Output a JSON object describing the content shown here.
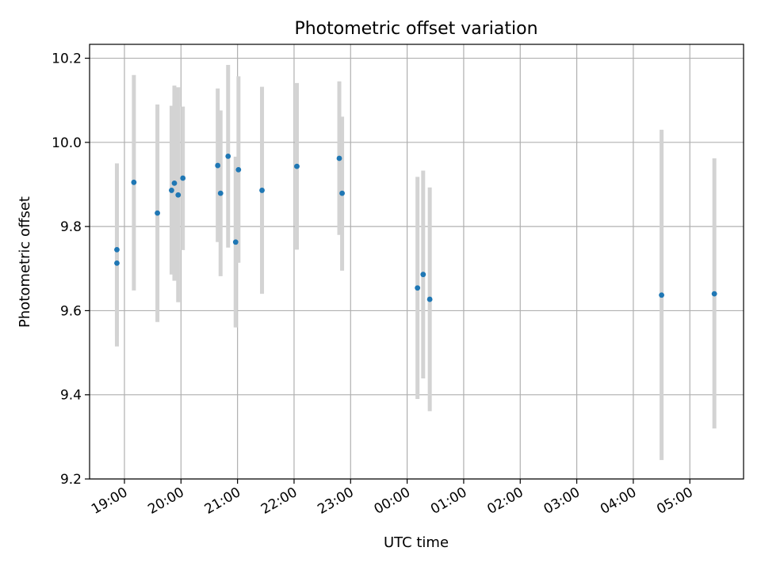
{
  "chart_data": {
    "type": "scatter",
    "title": "Photometric offset variation",
    "xlabel": "UTC time",
    "ylabel": "Photometric offset",
    "ylim": [
      9.2,
      10.233
    ],
    "xlim": [
      "18:23",
      "05:57"
    ],
    "yticks": [
      "9.2",
      "9.4",
      "9.6",
      "9.8",
      "10.0",
      "10.2"
    ],
    "xticks": [
      "19:00",
      "20:00",
      "21:00",
      "22:00",
      "23:00",
      "00:00",
      "01:00",
      "02:00",
      "03:00",
      "04:00",
      "05:00"
    ],
    "grid": true,
    "legend": "none",
    "marker_color": "#1f77b4",
    "errorbar_color": "#d3d3d3",
    "series": [
      {
        "points": [
          {
            "x": "18:52",
            "y": 9.745,
            "ylow": 9.54,
            "yhigh": 9.95
          },
          {
            "x": "18:52",
            "y": 9.713,
            "ylow": 9.515,
            "yhigh": 9.91
          },
          {
            "x": "19:10",
            "y": 9.905,
            "ylow": 9.648,
            "yhigh": 10.16
          },
          {
            "x": "19:35",
            "y": 9.832,
            "ylow": 9.573,
            "yhigh": 10.09
          },
          {
            "x": "19:50",
            "y": 9.886,
            "ylow": 9.686,
            "yhigh": 10.087
          },
          {
            "x": "19:53",
            "y": 9.903,
            "ylow": 9.671,
            "yhigh": 10.135
          },
          {
            "x": "19:57",
            "y": 9.875,
            "ylow": 9.62,
            "yhigh": 10.131
          },
          {
            "x": "20:02",
            "y": 9.915,
            "ylow": 9.744,
            "yhigh": 10.085
          },
          {
            "x": "20:39",
            "y": 9.945,
            "ylow": 9.763,
            "yhigh": 10.128
          },
          {
            "x": "20:42",
            "y": 9.879,
            "ylow": 9.682,
            "yhigh": 10.076
          },
          {
            "x": "20:50",
            "y": 9.967,
            "ylow": 9.75,
            "yhigh": 10.184
          },
          {
            "x": "20:58",
            "y": 9.763,
            "ylow": 9.56,
            "yhigh": 9.966
          },
          {
            "x": "21:01",
            "y": 9.935,
            "ylow": 9.714,
            "yhigh": 10.157
          },
          {
            "x": "21:26",
            "y": 9.886,
            "ylow": 9.64,
            "yhigh": 10.132
          },
          {
            "x": "22:03",
            "y": 9.943,
            "ylow": 9.745,
            "yhigh": 10.141
          },
          {
            "x": "22:48",
            "y": 9.962,
            "ylow": 9.78,
            "yhigh": 10.145
          },
          {
            "x": "22:51",
            "y": 9.879,
            "ylow": 9.695,
            "yhigh": 10.061
          },
          {
            "x": "00:11",
            "y": 9.654,
            "ylow": 9.39,
            "yhigh": 9.918
          },
          {
            "x": "00:17",
            "y": 9.686,
            "ylow": 9.439,
            "yhigh": 9.933
          },
          {
            "x": "00:24",
            "y": 9.627,
            "ylow": 9.361,
            "yhigh": 9.893
          },
          {
            "x": "04:30",
            "y": 9.637,
            "ylow": 9.245,
            "yhigh": 10.03
          },
          {
            "x": "05:26",
            "y": 9.64,
            "ylow": 9.32,
            "yhigh": 9.962
          }
        ]
      }
    ]
  }
}
